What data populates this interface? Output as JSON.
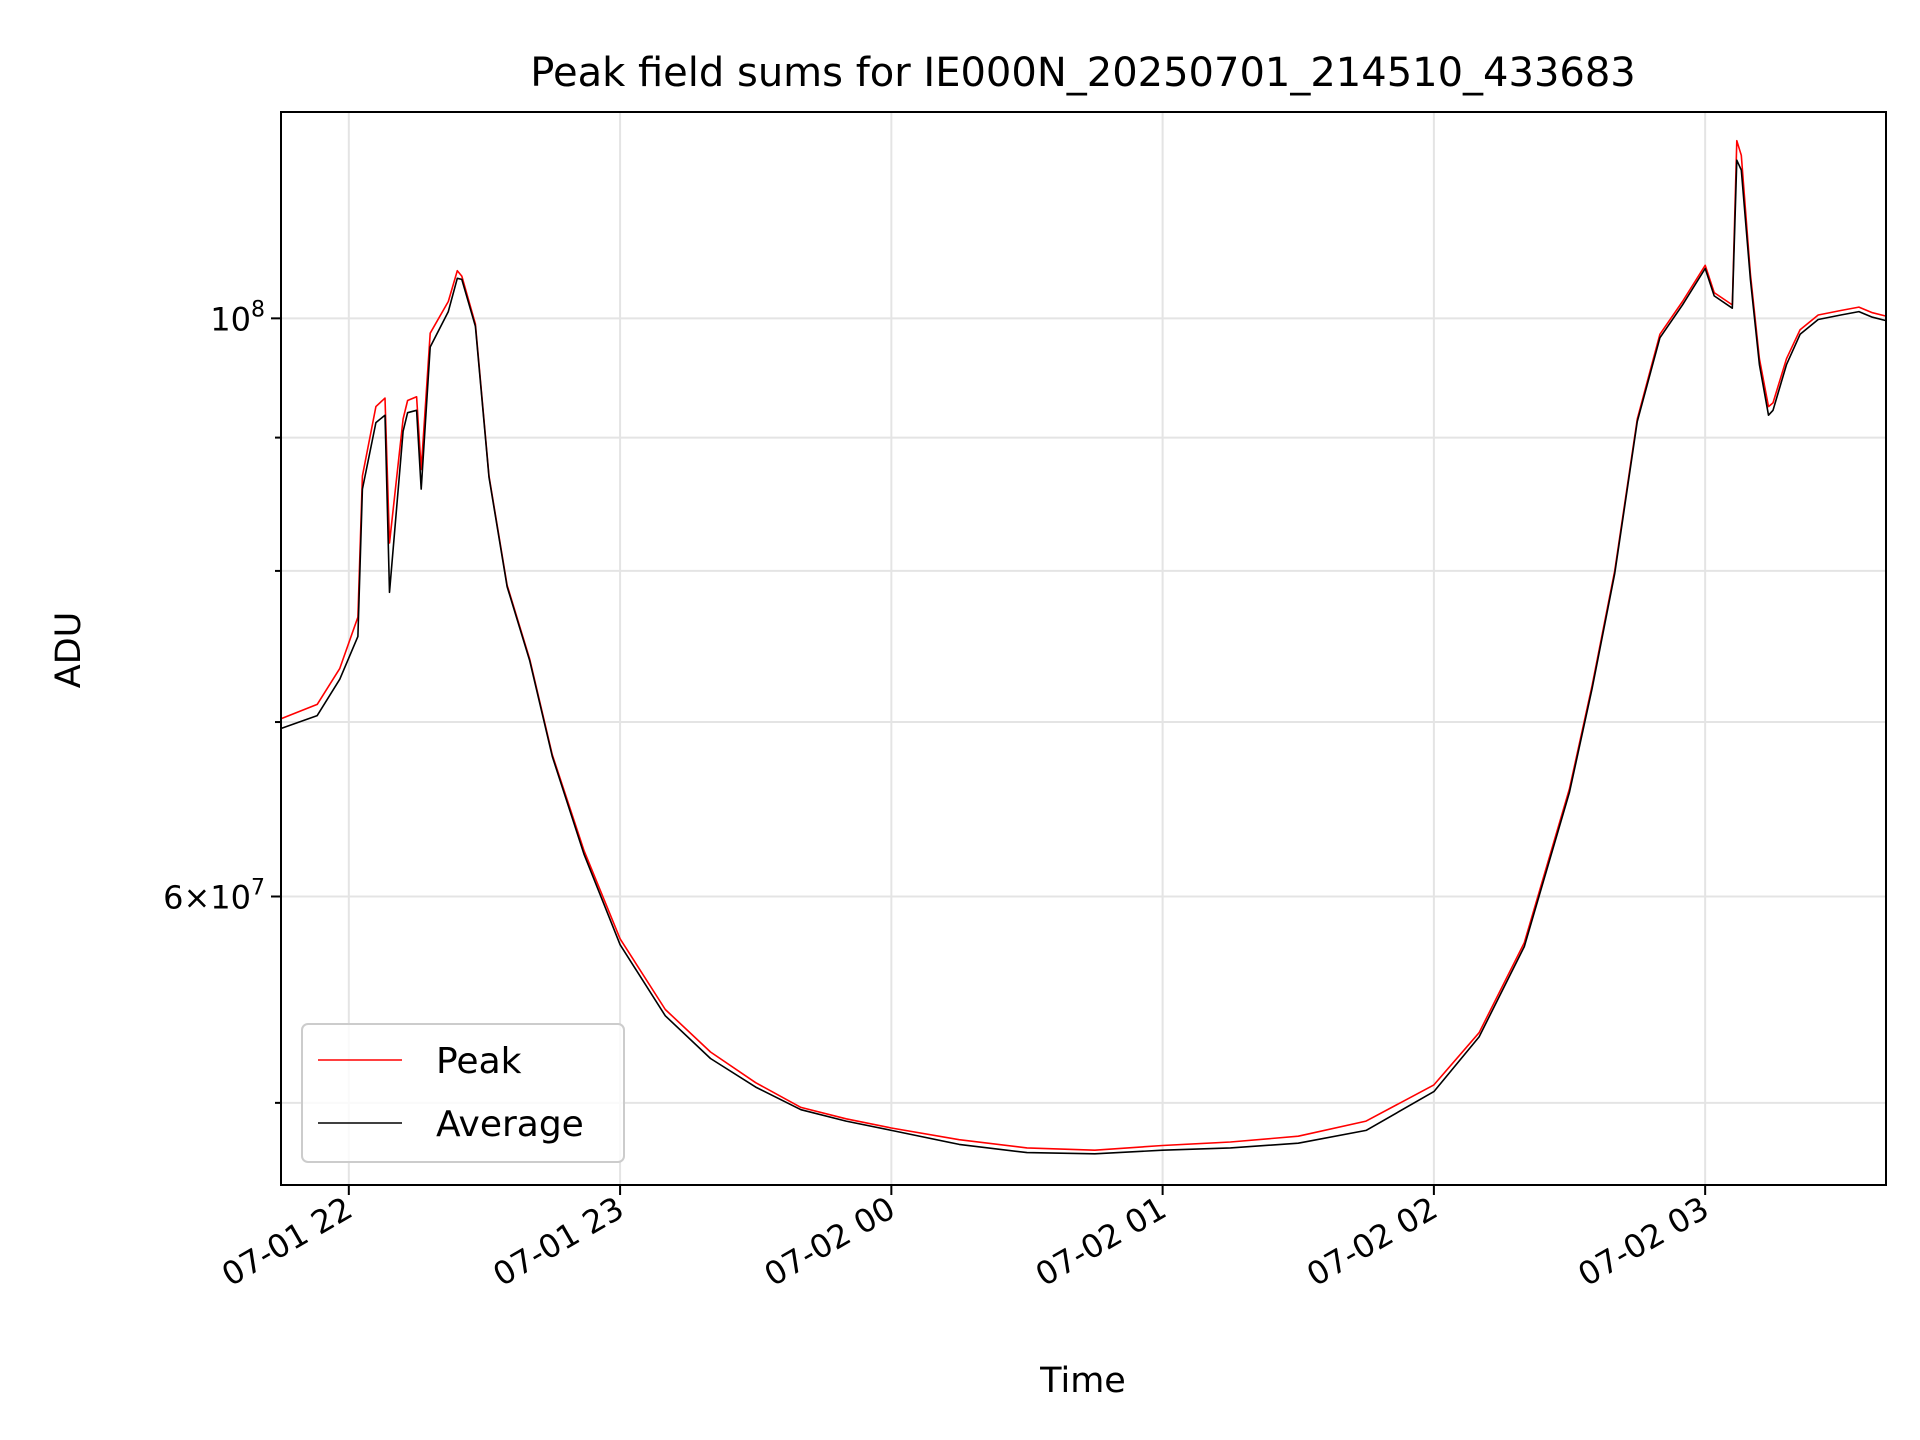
{
  "chart_data": {
    "type": "line",
    "title": "Peak field sums for IE000N_20250701_214510_433683",
    "xlabel": "Time",
    "ylabel": "ADU",
    "yscale": "log",
    "xlim": [
      "2025-07-01 21:45",
      "2025-07-02 03:40"
    ],
    "ylim": [
      46500000,
      120000000
    ],
    "x_ticks": [
      {
        "time": "2025-07-01 22:00",
        "label": "07-01 22"
      },
      {
        "time": "2025-07-01 23:00",
        "label": "07-01 23"
      },
      {
        "time": "2025-07-02 00:00",
        "label": "07-02 00"
      },
      {
        "time": "2025-07-02 01:00",
        "label": "07-02 01"
      },
      {
        "time": "2025-07-02 02:00",
        "label": "07-02 02"
      },
      {
        "time": "2025-07-02 03:00",
        "label": "07-02 03"
      }
    ],
    "y_major_ticks": [
      {
        "value": 60000000,
        "base": "6×10",
        "exp": "7"
      },
      {
        "value": 100000000,
        "base": "10",
        "exp": "8"
      }
    ],
    "y_minor_ticks": [
      50000000,
      70000000,
      80000000,
      90000000
    ],
    "grid": true,
    "legend_position": "lower-left",
    "series": [
      {
        "name": "Peak",
        "color": "#ff0000",
        "x": [
          "2025-07-01 21:45",
          "2025-07-01 21:53",
          "2025-07-01 21:58",
          "2025-07-01 22:02",
          "2025-07-01 22:03",
          "2025-07-01 22:06",
          "2025-07-01 22:08",
          "2025-07-01 22:09",
          "2025-07-01 22:12",
          "2025-07-01 22:13",
          "2025-07-01 22:15",
          "2025-07-01 22:16",
          "2025-07-01 22:18",
          "2025-07-01 22:22",
          "2025-07-01 22:24",
          "2025-07-01 22:25",
          "2025-07-01 22:28",
          "2025-07-01 22:31",
          "2025-07-01 22:35",
          "2025-07-01 22:40",
          "2025-07-01 22:45",
          "2025-07-01 22:52",
          "2025-07-01 23:00",
          "2025-07-01 23:10",
          "2025-07-01 23:20",
          "2025-07-01 23:30",
          "2025-07-01 23:40",
          "2025-07-01 23:50",
          "2025-07-02 00:00",
          "2025-07-02 00:15",
          "2025-07-02 00:30",
          "2025-07-02 00:45",
          "2025-07-02 01:00",
          "2025-07-02 01:15",
          "2025-07-02 01:30",
          "2025-07-02 01:45",
          "2025-07-02 02:00",
          "2025-07-02 02:10",
          "2025-07-02 02:20",
          "2025-07-02 02:30",
          "2025-07-02 02:35",
          "2025-07-02 02:40",
          "2025-07-02 02:45",
          "2025-07-02 02:50",
          "2025-07-02 02:55",
          "2025-07-02 03:00",
          "2025-07-02 03:02",
          "2025-07-02 03:06",
          "2025-07-02 03:07",
          "2025-07-02 03:08",
          "2025-07-02 03:10",
          "2025-07-02 03:12",
          "2025-07-02 03:14",
          "2025-07-02 03:15",
          "2025-07-02 03:18",
          "2025-07-02 03:21",
          "2025-07-02 03:25",
          "2025-07-02 03:30",
          "2025-07-02 03:34",
          "2025-07-02 03:37",
          "2025-07-02 03:40"
        ],
        "y": [
          70200000,
          71100000,
          73400000,
          76800000,
          87000000,
          92500000,
          93200000,
          82000000,
          91500000,
          93000000,
          93300000,
          87500000,
          98700000,
          101500000,
          104300000,
          103800000,
          99500000,
          87000000,
          79000000,
          74000000,
          68000000,
          62500000,
          57800000,
          54300000,
          52300000,
          50900000,
          49800000,
          49300000,
          48900000,
          48400000,
          48050000,
          47950000,
          48150000,
          48300000,
          48550000,
          49200000,
          50800000,
          53200000,
          57600000,
          66000000,
          72300000,
          80000000,
          91500000,
          98600000,
          101500000,
          104800000,
          102300000,
          101200000,
          117000000,
          115500000,
          104000000,
          96500000,
          92500000,
          92800000,
          96500000,
          99000000,
          100300000,
          100700000,
          101000000,
          100500000,
          100200000
        ]
      },
      {
        "name": "Average",
        "color": "#000000",
        "x": [
          "2025-07-01 21:45",
          "2025-07-01 21:53",
          "2025-07-01 21:58",
          "2025-07-01 22:02",
          "2025-07-01 22:03",
          "2025-07-01 22:06",
          "2025-07-01 22:08",
          "2025-07-01 22:09",
          "2025-07-01 22:12",
          "2025-07-01 22:13",
          "2025-07-01 22:15",
          "2025-07-01 22:16",
          "2025-07-01 22:18",
          "2025-07-01 22:22",
          "2025-07-01 22:24",
          "2025-07-01 22:25",
          "2025-07-01 22:28",
          "2025-07-01 22:31",
          "2025-07-01 22:35",
          "2025-07-01 22:40",
          "2025-07-01 22:45",
          "2025-07-01 22:52",
          "2025-07-01 23:00",
          "2025-07-01 23:10",
          "2025-07-01 23:20",
          "2025-07-01 23:30",
          "2025-07-01 23:40",
          "2025-07-01 23:50",
          "2025-07-02 00:00",
          "2025-07-02 00:15",
          "2025-07-02 00:30",
          "2025-07-02 00:45",
          "2025-07-02 01:00",
          "2025-07-02 01:15",
          "2025-07-02 01:30",
          "2025-07-02 01:45",
          "2025-07-02 02:00",
          "2025-07-02 02:10",
          "2025-07-02 02:20",
          "2025-07-02 02:30",
          "2025-07-02 02:35",
          "2025-07-02 02:40",
          "2025-07-02 02:45",
          "2025-07-02 02:50",
          "2025-07-02 02:55",
          "2025-07-02 03:00",
          "2025-07-02 03:02",
          "2025-07-02 03:06",
          "2025-07-02 03:07",
          "2025-07-02 03:08",
          "2025-07-02 03:10",
          "2025-07-02 03:12",
          "2025-07-02 03:14",
          "2025-07-02 03:15",
          "2025-07-02 03:18",
          "2025-07-02 03:21",
          "2025-07-02 03:25",
          "2025-07-02 03:30",
          "2025-07-02 03:34",
          "2025-07-02 03:37",
          "2025-07-02 03:40"
        ],
        "y": [
          69600000,
          70400000,
          72700000,
          75500000,
          86000000,
          91200000,
          91800000,
          78500000,
          90500000,
          92000000,
          92200000,
          86000000,
          97500000,
          100600000,
          103600000,
          103500000,
          99300000,
          86900000,
          78900000,
          73900000,
          67900000,
          62300000,
          57500000,
          54000000,
          52000000,
          50700000,
          49700000,
          49200000,
          48800000,
          48200000,
          47850000,
          47800000,
          47950000,
          48050000,
          48250000,
          48800000,
          50500000,
          53000000,
          57400000,
          65800000,
          72100000,
          79800000,
          91300000,
          98300000,
          101200000,
          104500000,
          102000000,
          100900000,
          115000000,
          114000000,
          103500000,
          96000000,
          91800000,
          92200000,
          96000000,
          98600000,
          99900000,
          100300000,
          100600000,
          100100000,
          99800000
        ]
      }
    ]
  }
}
